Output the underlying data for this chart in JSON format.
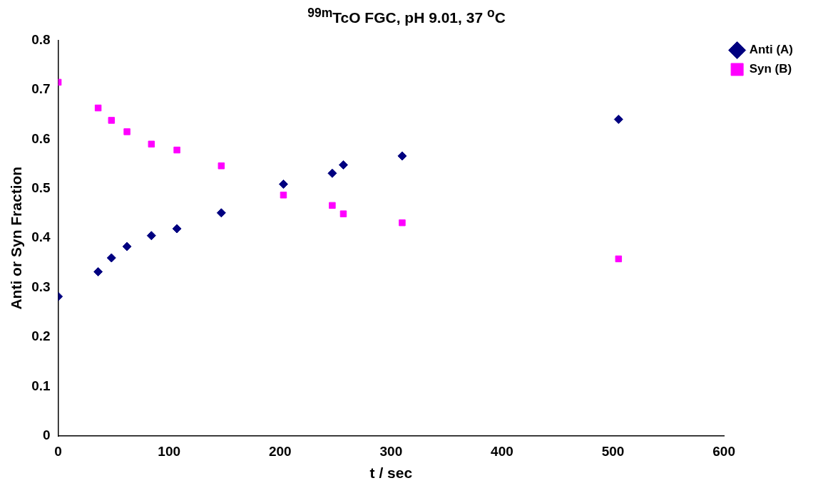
{
  "chart_data": {
    "type": "scatter",
    "title": "$^{99m}$TcO FGC, pH 9.01, 37 $^{o}$C",
    "xlabel": "t / sec",
    "ylabel": "Anti or Syn Fraction",
    "x": [
      0,
      36,
      48,
      62,
      84,
      107,
      147,
      203,
      247,
      257,
      310,
      505
    ],
    "series": [
      {
        "name": "Anti (A)",
        "color": "#000080",
        "marker": "diamond",
        "values": [
          0.282,
          0.332,
          0.36,
          0.383,
          0.405,
          0.419,
          0.451,
          0.509,
          0.531,
          0.548,
          0.566,
          0.64
        ]
      },
      {
        "name": "Syn (B)",
        "color": "#ff00ff",
        "marker": "square",
        "values": [
          0.715,
          0.663,
          0.638,
          0.615,
          0.59,
          0.578,
          0.546,
          0.487,
          0.466,
          0.449,
          0.431,
          0.358
        ]
      }
    ],
    "xlim": [
      0,
      600
    ],
    "xticks": [
      0,
      100,
      200,
      300,
      400,
      500,
      600
    ],
    "ylim": [
      0,
      0.8
    ],
    "yticks": [
      0,
      0.1,
      0.2,
      0.3,
      0.4,
      0.5,
      0.6,
      0.7,
      0.8
    ],
    "grid": false,
    "legend": "top right"
  }
}
